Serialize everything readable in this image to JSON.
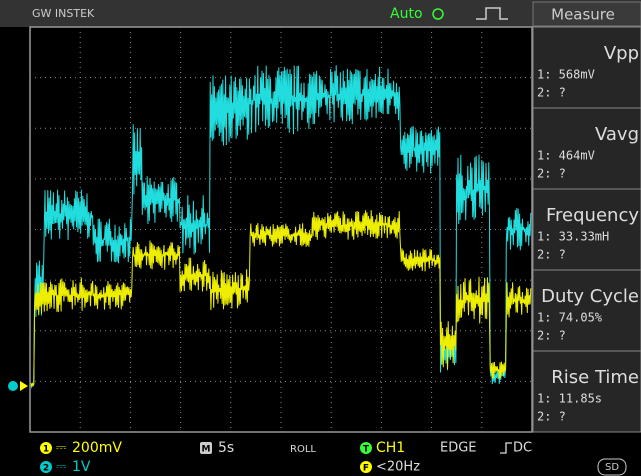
{
  "header": {
    "brand": "GW INSTEK",
    "mode": "Auto",
    "menu_title": "Measure"
  },
  "measurements": [
    {
      "name": "Vpp",
      "ch1": "1: 568mV",
      "ch2": "2: ?"
    },
    {
      "name": "Vavg",
      "ch1": "1: 464mV",
      "ch2": "2: ?"
    },
    {
      "name": "Frequency",
      "ch1": "1: 33.33mH",
      "ch2": "2: ?"
    },
    {
      "name": "Duty Cycle",
      "ch1": "1: 74.05%",
      "ch2": "2: ?"
    },
    {
      "name": "Rise Time",
      "ch1": "1: 11.85s",
      "ch2": "2: ?"
    }
  ],
  "footer": {
    "ch1_label": "1",
    "ch1_scale": "200mV",
    "ch2_label": "2",
    "ch2_scale": "1V",
    "timebase_label": "M",
    "timebase": "5s",
    "acquire_mode": "ROLL",
    "trigger_label": "T",
    "trigger_source": "CH1",
    "trigger_type": "EDGE",
    "coupling": "DC",
    "filter_label": "F",
    "filter": "<20Hz",
    "storage": "SD"
  }
}
